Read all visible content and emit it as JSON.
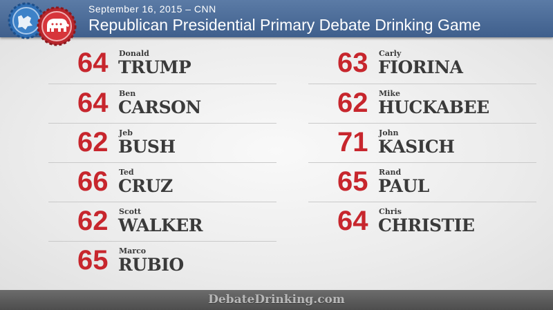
{
  "header": {
    "date_line": "September 16, 2015 – CNN",
    "title": "Republican Presidential Primary Debate Drinking Game"
  },
  "colors": {
    "header_blue": "#4a6a97",
    "score_red": "#c7262d",
    "name_dark": "#3a3a3a",
    "footer_gray": "#5a5a5a"
  },
  "icons": [
    "blue-bottle-cap-icon",
    "red-elephant-bottle-cap-icon"
  ],
  "candidates_left": [
    {
      "score": "64",
      "first": "Donald",
      "last": "TRUMP"
    },
    {
      "score": "64",
      "first": "Ben",
      "last": "CARSON"
    },
    {
      "score": "62",
      "first": "Jeb",
      "last": "BUSH"
    },
    {
      "score": "66",
      "first": "Ted",
      "last": "CRUZ"
    },
    {
      "score": "62",
      "first": "Scott",
      "last": "WALKER"
    },
    {
      "score": "65",
      "first": "Marco",
      "last": "RUBIO"
    }
  ],
  "candidates_right": [
    {
      "score": "63",
      "first": "Carly",
      "last": "FIORINA"
    },
    {
      "score": "62",
      "first": "Mike",
      "last": "HUCKABEE"
    },
    {
      "score": "71",
      "first": "John",
      "last": "KASICH"
    },
    {
      "score": "65",
      "first": "Rand",
      "last": "PAUL"
    },
    {
      "score": "64",
      "first": "Chris",
      "last": "CHRISTIE"
    }
  ],
  "footer": {
    "site": "DebateDrinking.com"
  }
}
